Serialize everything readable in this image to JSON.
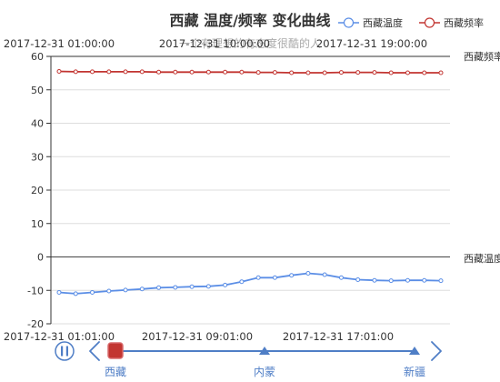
{
  "chart_data": {
    "type": "line",
    "title": "西藏 温度/频率 变化曲线",
    "subtitle": "一个有理想的有态度很酷的人",
    "legend": [
      "西藏温度",
      "西藏频率"
    ],
    "legend_position": "top-right",
    "top_time_ticks": [
      "2017-12-31 01:00:00",
      "2017-12-31 10:00:00",
      "2017-12-31 19:00:00"
    ],
    "bottom_time_ticks": [
      "2017-12-31 01:01:00",
      "2017-12-31 09:01:00",
      "2017-12-31 17:01:00"
    ],
    "y_ticks": [
      "60",
      "50",
      "40",
      "30",
      "20",
      "10",
      "0",
      "-10",
      "-20"
    ],
    "ylim": [
      -20,
      60
    ],
    "grid": true,
    "series": [
      {
        "name": "西藏频率",
        "color": "#c23531",
        "values": [
          55.5,
          55.4,
          55.4,
          55.4,
          55.4,
          55.4,
          55.3,
          55.3,
          55.3,
          55.3,
          55.3,
          55.3,
          55.2,
          55.2,
          55.1,
          55.1,
          55.1,
          55.2,
          55.2,
          55.2,
          55.1,
          55.1,
          55.1,
          55.1
        ]
      },
      {
        "name": "西藏温度",
        "color": "#5b8ee6",
        "values": [
          -10.6,
          -11.0,
          -10.6,
          -10.2,
          -9.9,
          -9.6,
          -9.2,
          -9.1,
          -8.9,
          -8.8,
          -8.4,
          -7.4,
          -6.2,
          -6.2,
          -5.5,
          -4.9,
          -5.3,
          -6.2,
          -6.8,
          -7.0,
          -7.1,
          -7.0,
          -7.0,
          -7.1
        ]
      }
    ],
    "y_axis_names": [
      "西藏频率",
      "西藏温度"
    ]
  },
  "timeline": {
    "labels": [
      "西藏",
      "内蒙",
      "新疆"
    ],
    "play_icon": "pause-icon",
    "prev_icon": "chevron-left-icon",
    "next_icon": "chevron-right-icon",
    "accent": "#4f7ec6",
    "current_color": "#c23531"
  }
}
